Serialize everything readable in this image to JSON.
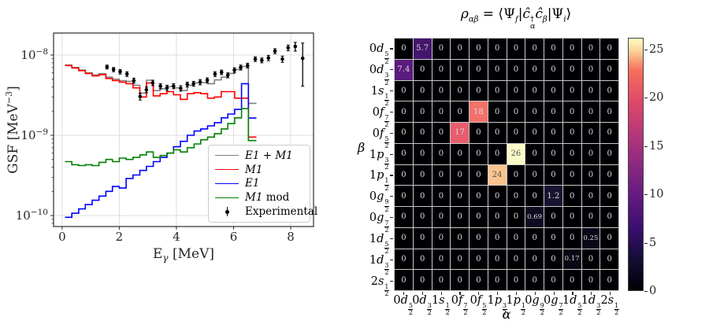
{
  "page": {
    "background": "#ffffff"
  },
  "chart_data": [
    {
      "id": "gsf",
      "type": "line",
      "title": "",
      "xlabel_parts": {
        "base": "E",
        "sub": "γ",
        "post": " [MeV]"
      },
      "ylabel_parts": {
        "pre": "GSF [MeV",
        "sup": "−3",
        "post": "]"
      },
      "xlim": [
        -0.3,
        8.8
      ],
      "ylim": [
        7.3e-11,
        1.88e-08
      ],
      "ylog": true,
      "grid": true,
      "xticks": [
        {
          "value": 0,
          "label": "0"
        },
        {
          "value": 2,
          "label": "2"
        },
        {
          "value": 4,
          "label": "4"
        },
        {
          "value": 6,
          "label": "6"
        },
        {
          "value": 8,
          "label": "8"
        }
      ],
      "yticks": [
        {
          "value": 1e-08,
          "base": "10",
          "exp": "−8"
        },
        {
          "value": 1e-09,
          "base": "10",
          "exp": "−9"
        },
        {
          "value": 1e-10,
          "base": "10",
          "exp": "−10"
        }
      ],
      "grid_color": "#dddddd",
      "spine_color": "#2b2b2b",
      "bin_edges": [
        0.1,
        0.34,
        0.58,
        0.81,
        1.05,
        1.29,
        1.53,
        1.76,
        2.0,
        2.24,
        2.48,
        2.72,
        2.95,
        3.19,
        3.43,
        3.67,
        3.9,
        4.14,
        4.38,
        4.62,
        4.85,
        5.09,
        5.33,
        5.57,
        5.8,
        6.04,
        6.28,
        6.52,
        6.8
      ],
      "series": [
        {
          "name": "E1 + M1",
          "color": "#808080",
          "values": [
            7.5e-09,
            7e-09,
            6.5e-09,
            6e-09,
            5.65e-09,
            5.85e-09,
            5.3e-09,
            5e-09,
            4.8e-09,
            4.7e-09,
            4.2e-09,
            3.35e-09,
            4.85e-09,
            3.6e-09,
            3.8e-09,
            4.05e-09,
            3.9e-09,
            3.6e-09,
            4.2e-09,
            4.5e-09,
            4.55e-09,
            4.4e-09,
            4.9e-09,
            5.3e-09,
            5.9e-09,
            6.6e-09,
            7.2e-09,
            2.5e-09
          ]
        },
        {
          "name": "M1",
          "color": "#ff0000",
          "values": [
            7.4e-09,
            6.9e-09,
            6.4e-09,
            5.9e-09,
            5.5e-09,
            5.7e-09,
            5.1e-09,
            4.8e-09,
            4.6e-09,
            4.4e-09,
            3.9e-09,
            3e-09,
            4.5e-09,
            3.1e-09,
            3.3e-09,
            3.5e-09,
            3.2e-09,
            2.8e-09,
            3.3e-09,
            3.4e-09,
            3.3e-09,
            2.9e-09,
            3e-09,
            3.5e-09,
            3.5e-09,
            2.9e-09,
            2.9e-09,
            9.5e-10
          ]
        },
        {
          "name": "E1",
          "color": "#0000ff",
          "values": [
            9.5e-11,
            1.07e-10,
            1.21e-10,
            1.37e-10,
            1.55e-10,
            1.75e-10,
            2e-10,
            2.3e-10,
            2.2e-10,
            2.9e-10,
            3.2e-10,
            3.65e-10,
            4.1e-10,
            4.7e-10,
            5.3e-10,
            6e-10,
            7.2e-10,
            8.4e-10,
            1e-09,
            1.13e-09,
            1.2e-09,
            1.31e-09,
            1.44e-09,
            1.65e-09,
            1.84e-09,
            2.1e-09,
            4.4e-09,
            1.64e-09
          ]
        },
        {
          "name": "M1 mod",
          "color": "#008000",
          "values": [
            4.7e-10,
            4.3e-10,
            4.2e-10,
            4.3e-10,
            4.2e-10,
            4.6e-10,
            5e-10,
            4.7e-10,
            5.2e-10,
            5e-10,
            5.3e-10,
            5.7e-10,
            6.2e-10,
            5.3e-10,
            5.6e-10,
            6e-10,
            6.6e-10,
            6.2e-10,
            7e-10,
            7.8e-10,
            8.8e-10,
            9.5e-10,
            1.05e-09,
            1.2e-09,
            1.4e-09,
            1.65e-09,
            2.15e-09,
            8.6e-10
          ]
        }
      ],
      "experimental": {
        "name": "Experimental",
        "color": "#000000",
        "points": [
          [
            1.57,
            7.1e-09,
            4e-10
          ],
          [
            1.8,
            6.6e-09,
            4e-10
          ],
          [
            2.03,
            6.2e-09,
            4e-10
          ],
          [
            2.27,
            5.8e-09,
            4e-10
          ],
          [
            2.51,
            4.8e-09,
            3.5e-10
          ],
          [
            2.73,
            3.05e-09,
            3e-10
          ],
          [
            2.95,
            3.7e-09,
            3e-10
          ],
          [
            3.17,
            4.5e-09,
            3.5e-10
          ],
          [
            3.44,
            4.1e-09,
            3e-10
          ],
          [
            3.67,
            3.9e-09,
            3e-10
          ],
          [
            3.9,
            4.1e-09,
            3e-10
          ],
          [
            4.15,
            3.85e-09,
            3e-10
          ],
          [
            4.38,
            4.3e-09,
            3e-10
          ],
          [
            4.6,
            4.4e-09,
            3e-10
          ],
          [
            4.83,
            4.6e-09,
            3.5e-10
          ],
          [
            5.08,
            4.85e-09,
            3.5e-10
          ],
          [
            5.35,
            5.8e-09,
            4e-10
          ],
          [
            5.58,
            6.1e-09,
            4e-10
          ],
          [
            5.8,
            5.6e-09,
            4e-10
          ],
          [
            6.03,
            6.5e-09,
            4.5e-10
          ],
          [
            6.25,
            7e-09,
            5e-10
          ],
          [
            6.49,
            7.4e-09,
            5e-10
          ],
          [
            6.76,
            8.9e-09,
            6e-10
          ],
          [
            6.99,
            8.6e-09,
            6e-10
          ],
          [
            7.22,
            9.2e-09,
            7e-10
          ],
          [
            7.45,
            1.12e-08,
            8e-10
          ],
          [
            7.71,
            8.9e-09,
            8e-10
          ],
          [
            7.91,
            1.23e-08,
            1e-09
          ],
          [
            8.16,
            1.28e-08,
            1.6e-09
          ],
          [
            8.42,
            9.1e-09,
            5e-09
          ]
        ]
      },
      "legend_position": "lower right"
    },
    {
      "id": "density_matrix",
      "type": "heatmap",
      "title_parts": {
        "rho": "ρ",
        "rho_sub": "αβ",
        "eq": " = ",
        "langle": "⟨",
        "psi1": "Ψ",
        "psi1_sub": "f",
        "bar1": "|",
        "c1": "ĉ",
        "c1_sup": "†",
        "c1_sub": "α",
        "c2": "ĉ",
        "c2_sub": "β",
        "bar2": "|",
        "psi2": "Ψ",
        "psi2_sub": "i",
        "rangle": "⟩"
      },
      "xlabel": "α",
      "ylabel": "β",
      "orbital_labels": [
        "0d5/2",
        "0d3/2",
        "1s1/2",
        "0f7/2",
        "0f5/2",
        "1p3/2",
        "1p1/2",
        "0g9/2",
        "0g7/2",
        "1d5/2",
        "1d3/2",
        "2s1/2"
      ],
      "matrix": [
        [
          "0",
          "5.7",
          "0",
          "0",
          "0",
          "0",
          "0",
          "0",
          "0",
          "0",
          "0",
          "0"
        ],
        [
          "7.4",
          "0",
          "0",
          "0",
          "0",
          "0",
          "0",
          "0",
          "0",
          "0",
          "0",
          "0"
        ],
        [
          "0",
          "0",
          "0",
          "0",
          "0",
          "0",
          "0",
          "0",
          "0",
          "0",
          "0",
          "0"
        ],
        [
          "0",
          "0",
          "0",
          "0",
          "18",
          "0",
          "0",
          "0",
          "0",
          "0",
          "0",
          "0"
        ],
        [
          "0",
          "0",
          "0",
          "17",
          "0",
          "0",
          "0",
          "0",
          "0",
          "0",
          "0",
          "0"
        ],
        [
          "0",
          "0",
          "0",
          "0",
          "0",
          "0",
          "26",
          "0",
          "0",
          "0",
          "0",
          "0"
        ],
        [
          "0",
          "0",
          "0",
          "0",
          "0",
          "24",
          "0",
          "0",
          "0",
          "0",
          "0",
          "0"
        ],
        [
          "0",
          "0",
          "0",
          "0",
          "0",
          "0",
          "0",
          "0",
          "1.2",
          "0",
          "0",
          "0"
        ],
        [
          "0",
          "0",
          "0",
          "0",
          "0",
          "0",
          "0",
          "0.69",
          "0",
          "0",
          "0",
          "0"
        ],
        [
          "0",
          "0",
          "0",
          "0",
          "0",
          "0",
          "0",
          "0",
          "0",
          "0",
          "0.25",
          "0"
        ],
        [
          "0",
          "0",
          "0",
          "0",
          "0",
          "0",
          "0",
          "0",
          "0",
          "0.17",
          "0",
          "0"
        ],
        [
          "0",
          "0",
          "0",
          "0",
          "0",
          "0",
          "0",
          "0",
          "0",
          "0",
          "0",
          "0"
        ]
      ],
      "vmin": 0,
      "vmax": 26.2,
      "colormap": "magma",
      "colormap_stops": [
        {
          "t": 0.0,
          "c": "#000004"
        },
        {
          "t": 0.125,
          "c": "#140e36"
        },
        {
          "t": 0.25,
          "c": "#3b0f70"
        },
        {
          "t": 0.375,
          "c": "#641a80"
        },
        {
          "t": 0.5,
          "c": "#8c2981"
        },
        {
          "t": 0.625,
          "c": "#b73779"
        },
        {
          "t": 0.75,
          "c": "#de4968"
        },
        {
          "t": 0.875,
          "c": "#f7705c"
        },
        {
          "t": 0.95,
          "c": "#fcd297"
        },
        {
          "t": 1.0,
          "c": "#fcfdbf"
        }
      ],
      "value_colors": {
        "0": "#000004",
        "5.7": "#44156d",
        "7.4": "#5b1a7e",
        "17": "#e85d6e",
        "18": "#f4716a",
        "24": "#fac48e",
        "26": "#fafac8",
        "1.2": "#171330",
        "0.69": "#0e0b21",
        "0.25": "#0a0718",
        "0.17": "#090714"
      },
      "annotation_light": "#d9d9d9",
      "annotation_dark": "#545454",
      "colorbar_ticks": [
        "0",
        "5",
        "10",
        "15",
        "20",
        "25"
      ]
    }
  ]
}
